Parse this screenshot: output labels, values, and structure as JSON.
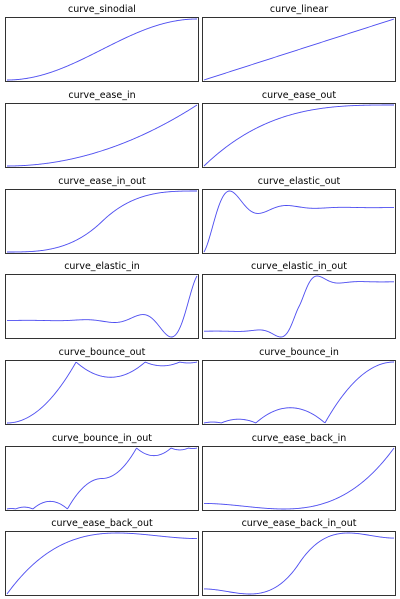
{
  "colors": {
    "line": "#4c4cf0",
    "frame": "#000000",
    "background": "#ffffff"
  },
  "chart_data": [
    {
      "type": "line",
      "title": "curve_sinodial",
      "series": [
        {
          "function": "sinodial"
        }
      ]
    },
    {
      "type": "line",
      "title": "curve_linear",
      "series": [
        {
          "function": "linear"
        }
      ]
    },
    {
      "type": "line",
      "title": "curve_ease_in",
      "series": [
        {
          "function": "ease_in"
        }
      ]
    },
    {
      "type": "line",
      "title": "curve_ease_out",
      "series": [
        {
          "function": "ease_out"
        }
      ]
    },
    {
      "type": "line",
      "title": "curve_ease_in_out",
      "series": [
        {
          "function": "ease_in_out"
        }
      ]
    },
    {
      "type": "line",
      "title": "curve_elastic_out",
      "series": [
        {
          "function": "elastic_out"
        }
      ]
    },
    {
      "type": "line",
      "title": "curve_elastic_in",
      "series": [
        {
          "function": "elastic_in"
        }
      ]
    },
    {
      "type": "line",
      "title": "curve_elastic_in_out",
      "series": [
        {
          "function": "elastic_in_out"
        }
      ]
    },
    {
      "type": "line",
      "title": "curve_bounce_out",
      "series": [
        {
          "function": "bounce_out"
        }
      ]
    },
    {
      "type": "line",
      "title": "curve_bounce_in",
      "series": [
        {
          "function": "bounce_in"
        }
      ]
    },
    {
      "type": "line",
      "title": "curve_bounce_in_out",
      "series": [
        {
          "function": "bounce_in_out"
        }
      ]
    },
    {
      "type": "line",
      "title": "curve_ease_back_in",
      "series": [
        {
          "function": "ease_back_in"
        }
      ]
    },
    {
      "type": "line",
      "title": "curve_ease_back_out",
      "series": [
        {
          "function": "ease_back_out"
        }
      ]
    },
    {
      "type": "line",
      "title": "curve_ease_back_in_out",
      "series": [
        {
          "function": "ease_back_in_out"
        }
      ]
    }
  ]
}
